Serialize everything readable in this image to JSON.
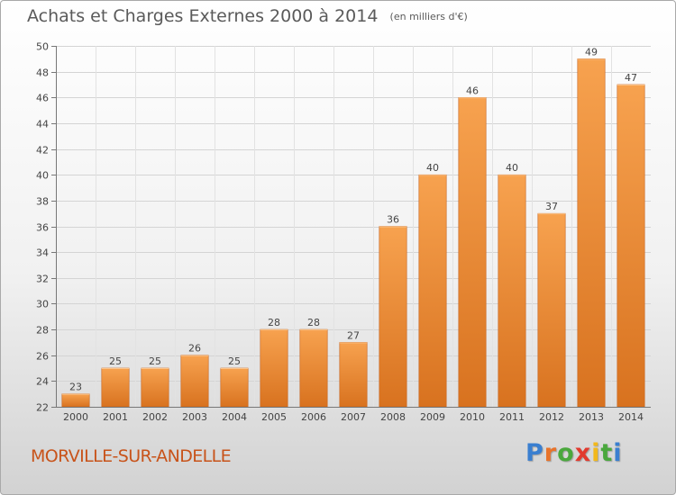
{
  "chart_data": {
    "type": "bar",
    "title": "Achats et Charges Externes 2000 à 2014",
    "unit": "(en milliers d'€)",
    "categories": [
      "2000",
      "2001",
      "2002",
      "2003",
      "2004",
      "2005",
      "2006",
      "2007",
      "2008",
      "2009",
      "2010",
      "2011",
      "2012",
      "2013",
      "2014"
    ],
    "values": [
      23,
      25,
      25,
      26,
      25,
      28,
      28,
      27,
      36,
      40,
      46,
      40,
      37,
      49,
      47
    ],
    "ylim": [
      22,
      50
    ],
    "yticks": [
      22,
      24,
      26,
      28,
      30,
      32,
      34,
      36,
      38,
      40,
      42,
      44,
      46,
      48,
      50
    ],
    "grid": true,
    "bar_color_top": "#f7a24f",
    "bar_color_bottom": "#d8721f"
  },
  "commune": "MORVILLE-SUR-ANDELLE",
  "logo": {
    "letters": [
      "P",
      "r",
      "o",
      "x",
      "i",
      "t",
      "i"
    ],
    "colors": [
      "#3a7fd0",
      "#e8732a",
      "#4aa83d",
      "#e23a2e",
      "#f2b81b",
      "#4aa83d",
      "#3a7fd0"
    ]
  }
}
